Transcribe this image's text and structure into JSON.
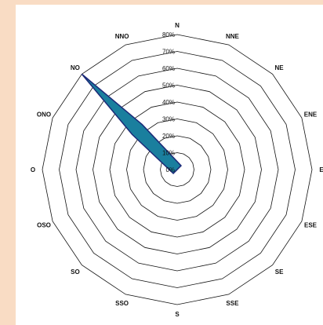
{
  "chart_data": {
    "type": "radar",
    "directions": [
      "N",
      "NNE",
      "NE",
      "ENE",
      "E",
      "ESE",
      "SE",
      "SSE",
      "S",
      "SSO",
      "SO",
      "OSO",
      "O",
      "ONO",
      "NO",
      "NNO"
    ],
    "rings": [
      "0%",
      "10%",
      "20%",
      "30%",
      "40%",
      "50%",
      "60%",
      "70%",
      "80%"
    ],
    "rmax": 80,
    "series": [
      {
        "values": [
          0,
          0,
          0,
          0,
          0,
          0,
          0,
          0,
          0,
          0,
          0,
          0,
          0,
          0,
          80,
          0
        ]
      }
    ],
    "fill_color": "#1a7f9e",
    "stroke_color": "#1c2a78",
    "grid_color": "#111111"
  }
}
